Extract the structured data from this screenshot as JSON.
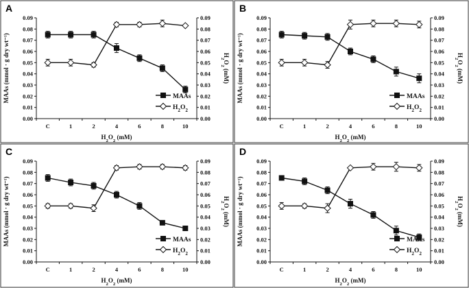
{
  "chart_data": [
    {
      "panel": "A",
      "type": "line",
      "categories": [
        "C",
        "1",
        "2",
        "4",
        "6",
        "8",
        "10"
      ],
      "xlabel": "H2O2 (mM)",
      "ylabel_left": "MAAs (mmol · g dry wt⁻¹)",
      "ylabel_right": "H2O2 (mM)",
      "ylim": [
        0,
        0.09
      ],
      "yticks": [
        "0.00",
        "0.01",
        "0.02",
        "0.03",
        "0.04",
        "0.05",
        "0.06",
        "0.07",
        "0.08",
        "0.09"
      ],
      "series": [
        {
          "name": "MAAs",
          "marker": "square-filled",
          "values": [
            0.075,
            0.075,
            0.075,
            0.063,
            0.054,
            0.045,
            0.026
          ],
          "errors": [
            0.003,
            0.003,
            0.003,
            0.004,
            0.003,
            0.003,
            0.003
          ]
        },
        {
          "name": "H2O2",
          "marker": "diamond-open",
          "values": [
            0.05,
            0.05,
            0.048,
            0.084,
            0.084,
            0.085,
            0.083
          ],
          "errors": [
            0.003,
            0.003,
            0.002,
            0.002,
            0.002,
            0.003,
            0.001
          ]
        }
      ]
    },
    {
      "panel": "B",
      "type": "line",
      "categories": [
        "C",
        "1",
        "2",
        "4",
        "6",
        "8",
        "10"
      ],
      "xlabel": "H2O2 (mM)",
      "ylabel_left": "MAAs (mmol · g dry wt⁻¹)",
      "ylabel_right": "H2O2 (mM)",
      "ylim": [
        0,
        0.09
      ],
      "yticks": [
        "0.00",
        "0.01",
        "0.02",
        "0.03",
        "0.04",
        "0.05",
        "0.06",
        "0.07",
        "0.08",
        "0.09"
      ],
      "series": [
        {
          "name": "MAAs",
          "marker": "square-filled",
          "values": [
            0.075,
            0.074,
            0.073,
            0.06,
            0.053,
            0.042,
            0.036
          ],
          "errors": [
            0.003,
            0.003,
            0.003,
            0.003,
            0.003,
            0.004,
            0.004
          ]
        },
        {
          "name": "H2O2",
          "marker": "diamond-open",
          "values": [
            0.05,
            0.05,
            0.048,
            0.084,
            0.085,
            0.085,
            0.084
          ],
          "errors": [
            0.003,
            0.003,
            0.003,
            0.004,
            0.003,
            0.003,
            0.003
          ]
        }
      ]
    },
    {
      "panel": "C",
      "type": "line",
      "categories": [
        "C",
        "1",
        "2",
        "4",
        "6",
        "8",
        "10"
      ],
      "xlabel": "H2O2 (mM)",
      "ylabel_left": "MAAs (mmol · g dry wt⁻¹)",
      "ylabel_right": "H2O2 (mM)",
      "ylim": [
        0,
        0.09
      ],
      "yticks": [
        "0.00",
        "0.01",
        "0.02",
        "0.03",
        "0.04",
        "0.05",
        "0.06",
        "0.07",
        "0.08",
        "0.09"
      ],
      "series": [
        {
          "name": "MAAs",
          "marker": "square-filled",
          "values": [
            0.075,
            0.071,
            0.068,
            0.06,
            0.05,
            0.035,
            0.03
          ],
          "errors": [
            0.003,
            0.003,
            0.003,
            0.003,
            0.003,
            0.002,
            0.002
          ]
        },
        {
          "name": "H2O2",
          "marker": "diamond-open",
          "values": [
            0.05,
            0.05,
            0.048,
            0.084,
            0.085,
            0.085,
            0.084
          ],
          "errors": [
            0.002,
            0.002,
            0.003,
            0.002,
            0.002,
            0.002,
            0.002
          ]
        }
      ]
    },
    {
      "panel": "D",
      "type": "line",
      "categories": [
        "C",
        "1",
        "2",
        "4",
        "6",
        "8",
        "10"
      ],
      "xlabel": "H2O2 (mM)",
      "ylabel_left": "MAAs (mmol · g dry wt⁻¹)",
      "ylabel_right": "H2O2 (mM)",
      "ylim": [
        0,
        0.09
      ],
      "yticks": [
        "0.00",
        "0.01",
        "0.02",
        "0.03",
        "0.04",
        "0.05",
        "0.06",
        "0.07",
        "0.08",
        "0.09"
      ],
      "series": [
        {
          "name": "MAAs",
          "marker": "square-filled",
          "values": [
            0.075,
            0.072,
            0.064,
            0.052,
            0.042,
            0.028,
            0.022
          ],
          "errors": [
            0.001,
            0.003,
            0.003,
            0.004,
            0.003,
            0.004,
            0.003
          ]
        },
        {
          "name": "H2O2",
          "marker": "diamond-open",
          "values": [
            0.05,
            0.05,
            0.048,
            0.084,
            0.085,
            0.085,
            0.084
          ],
          "errors": [
            0.003,
            0.002,
            0.004,
            0.001,
            0.003,
            0.004,
            0.003
          ]
        }
      ]
    }
  ],
  "colors": {
    "ink": "#111111",
    "frame": "#333333",
    "background": "#ffffff"
  }
}
